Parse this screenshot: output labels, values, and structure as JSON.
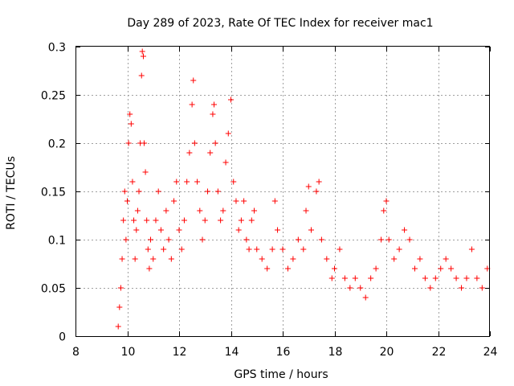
{
  "chart_data": {
    "type": "scatter",
    "title": "Day 289 of 2023, Rate Of TEC Index for receiver mac1",
    "xlabel": "GPS time / hours",
    "ylabel": "ROTI / TECUs",
    "xlim": [
      8,
      24
    ],
    "ylim": [
      0,
      0.3
    ],
    "x_ticks": [
      8,
      10,
      12,
      14,
      16,
      18,
      20,
      22,
      24
    ],
    "y_ticks": [
      0,
      0.05,
      0.1,
      0.15,
      0.2,
      0.25,
      0.3
    ],
    "x_tick_labels": [
      "8",
      "10",
      "12",
      "14",
      "16",
      "18",
      "20",
      "22",
      "24"
    ],
    "y_tick_labels": [
      "0",
      "0.05",
      "0.1",
      "0.15",
      "0.2",
      "0.25",
      "0.3"
    ],
    "grid": true,
    "marker": "+",
    "color": "#ff0000",
    "series": [
      {
        "name": "ROTI",
        "points": [
          [
            9.65,
            0.01
          ],
          [
            9.7,
            0.03
          ],
          [
            9.75,
            0.05
          ],
          [
            9.8,
            0.08
          ],
          [
            9.85,
            0.12
          ],
          [
            9.9,
            0.15
          ],
          [
            9.95,
            0.1
          ],
          [
            10.0,
            0.14
          ],
          [
            10.05,
            0.2
          ],
          [
            10.1,
            0.23
          ],
          [
            10.15,
            0.22
          ],
          [
            10.2,
            0.16
          ],
          [
            10.25,
            0.12
          ],
          [
            10.3,
            0.08
          ],
          [
            10.35,
            0.11
          ],
          [
            10.4,
            0.13
          ],
          [
            10.45,
            0.15
          ],
          [
            10.5,
            0.2
          ],
          [
            10.55,
            0.27
          ],
          [
            10.58,
            0.295
          ],
          [
            10.62,
            0.29
          ],
          [
            10.65,
            0.2
          ],
          [
            10.7,
            0.17
          ],
          [
            10.75,
            0.12
          ],
          [
            10.8,
            0.09
          ],
          [
            10.85,
            0.07
          ],
          [
            10.9,
            0.1
          ],
          [
            11.0,
            0.08
          ],
          [
            11.1,
            0.12
          ],
          [
            11.2,
            0.15
          ],
          [
            11.3,
            0.11
          ],
          [
            11.4,
            0.09
          ],
          [
            11.5,
            0.13
          ],
          [
            11.6,
            0.1
          ],
          [
            11.7,
            0.08
          ],
          [
            11.8,
            0.14
          ],
          [
            11.9,
            0.16
          ],
          [
            12.0,
            0.11
          ],
          [
            12.1,
            0.09
          ],
          [
            12.2,
            0.12
          ],
          [
            12.3,
            0.16
          ],
          [
            12.4,
            0.19
          ],
          [
            12.5,
            0.24
          ],
          [
            12.55,
            0.265
          ],
          [
            12.6,
            0.2
          ],
          [
            12.7,
            0.16
          ],
          [
            12.8,
            0.13
          ],
          [
            12.9,
            0.1
          ],
          [
            13.0,
            0.12
          ],
          [
            13.1,
            0.15
          ],
          [
            13.2,
            0.19
          ],
          [
            13.3,
            0.23
          ],
          [
            13.35,
            0.24
          ],
          [
            13.4,
            0.2
          ],
          [
            13.5,
            0.15
          ],
          [
            13.6,
            0.12
          ],
          [
            13.7,
            0.13
          ],
          [
            13.8,
            0.18
          ],
          [
            13.9,
            0.21
          ],
          [
            14.0,
            0.245
          ],
          [
            14.1,
            0.16
          ],
          [
            14.2,
            0.14
          ],
          [
            14.3,
            0.11
          ],
          [
            14.4,
            0.12
          ],
          [
            14.5,
            0.14
          ],
          [
            14.6,
            0.1
          ],
          [
            14.7,
            0.09
          ],
          [
            14.8,
            0.12
          ],
          [
            14.9,
            0.13
          ],
          [
            15.0,
            0.09
          ],
          [
            15.2,
            0.08
          ],
          [
            15.4,
            0.07
          ],
          [
            15.6,
            0.09
          ],
          [
            15.7,
            0.14
          ],
          [
            15.8,
            0.11
          ],
          [
            16.0,
            0.09
          ],
          [
            16.2,
            0.07
          ],
          [
            16.4,
            0.08
          ],
          [
            16.6,
            0.1
          ],
          [
            16.8,
            0.09
          ],
          [
            16.9,
            0.13
          ],
          [
            17.0,
            0.155
          ],
          [
            17.1,
            0.11
          ],
          [
            17.3,
            0.15
          ],
          [
            17.4,
            0.16
          ],
          [
            17.5,
            0.1
          ],
          [
            17.7,
            0.08
          ],
          [
            17.9,
            0.06
          ],
          [
            18.0,
            0.07
          ],
          [
            18.2,
            0.09
          ],
          [
            18.4,
            0.06
          ],
          [
            18.6,
            0.05
          ],
          [
            18.8,
            0.06
          ],
          [
            19.0,
            0.05
          ],
          [
            19.2,
            0.04
          ],
          [
            19.4,
            0.06
          ],
          [
            19.6,
            0.07
          ],
          [
            19.8,
            0.1
          ],
          [
            19.9,
            0.13
          ],
          [
            20.0,
            0.14
          ],
          [
            20.1,
            0.1
          ],
          [
            20.3,
            0.08
          ],
          [
            20.5,
            0.09
          ],
          [
            20.7,
            0.11
          ],
          [
            20.9,
            0.1
          ],
          [
            21.1,
            0.07
          ],
          [
            21.3,
            0.08
          ],
          [
            21.5,
            0.06
          ],
          [
            21.7,
            0.05
          ],
          [
            21.9,
            0.06
          ],
          [
            22.1,
            0.07
          ],
          [
            22.3,
            0.08
          ],
          [
            22.5,
            0.07
          ],
          [
            22.7,
            0.06
          ],
          [
            22.9,
            0.05
          ],
          [
            23.1,
            0.06
          ],
          [
            23.3,
            0.09
          ],
          [
            23.5,
            0.06
          ],
          [
            23.7,
            0.05
          ],
          [
            23.9,
            0.07
          ]
        ]
      }
    ]
  }
}
